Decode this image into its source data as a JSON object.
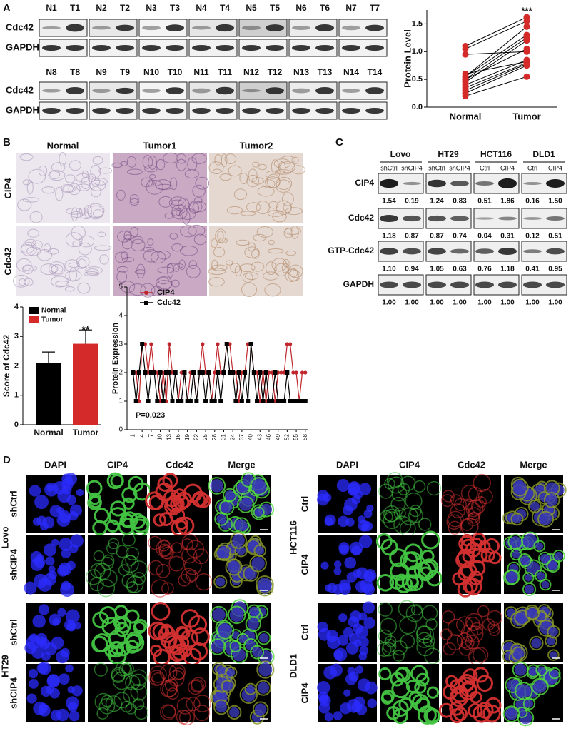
{
  "panels": {
    "a": {
      "label": "A",
      "blot_rows": [
        "Cdc42",
        "GAPDH"
      ],
      "lanes_top": [
        "N1",
        "T1",
        "N2",
        "T2",
        "N3",
        "T3",
        "N4",
        "T4",
        "N5",
        "T5",
        "N6",
        "T6",
        "N7",
        "T7"
      ],
      "lanes_bottom": [
        "N8",
        "T8",
        "N9",
        "T9",
        "N10",
        "T10",
        "N11",
        "T11",
        "N12",
        "T12",
        "N13",
        "T13",
        "N14",
        "T14"
      ]
    },
    "b": {
      "label": "B",
      "columns": [
        "Normal",
        "Tumor1",
        "Tumor2"
      ],
      "rows": [
        "CIP4",
        "Cdc42"
      ]
    },
    "c": {
      "label": "C",
      "groups": [
        {
          "name": "Lovo",
          "lanes": [
            "shCtrl",
            "shCIP4"
          ]
        },
        {
          "name": "HT29",
          "lanes": [
            "shCtrl",
            "shCIP4"
          ]
        },
        {
          "name": "HCT116",
          "lanes": [
            "Ctrl",
            "CIP4"
          ]
        },
        {
          "name": "DLD1",
          "lanes": [
            "Ctrl",
            "CIP4"
          ]
        }
      ],
      "rows": [
        {
          "name": "CIP4",
          "values": [
            "1.54",
            "0.19",
            "1.24",
            "0.83",
            "0.51",
            "1.86",
            "0.16",
            "1.50"
          ]
        },
        {
          "name": "Cdc42",
          "values": [
            "1.18",
            "0.87",
            "0.87",
            "0.74",
            "0.04",
            "0.31",
            "0.12",
            "0.51"
          ]
        },
        {
          "name": "GTP-Cdc42",
          "values": [
            "1.10",
            "0.94",
            "1.05",
            "0.63",
            "0.76",
            "1.18",
            "0.41",
            "0.95"
          ]
        },
        {
          "name": "GAPDH",
          "values": [
            "1.00",
            "1.00",
            "1.00",
            "1.00",
            "1.00",
            "1.00",
            "1.00",
            "1.00"
          ]
        }
      ]
    },
    "d": {
      "label": "D",
      "columns": [
        "DAPI",
        "CIP4",
        "Cdc42",
        "Merge"
      ],
      "left": [
        {
          "name": "Lovo",
          "conditions": [
            "shCtrl",
            "shCIP4"
          ]
        },
        {
          "name": "HT29",
          "conditions": [
            "shCtrl",
            "shCIP4"
          ]
        }
      ],
      "right": [
        {
          "name": "HCT116",
          "conditions": [
            "Ctrl",
            "CIP4"
          ]
        },
        {
          "name": "DLD1",
          "conditions": [
            "Ctrl",
            "CIP4"
          ]
        }
      ]
    }
  },
  "chart_data": [
    {
      "type": "paired",
      "ylabel": "Protein Level",
      "categories": [
        "Normal",
        "Tumor"
      ],
      "values": [
        [
          1.1,
          1.05,
          0.55,
          0.5,
          0.45,
          0.4,
          0.35,
          0.3,
          0.25,
          0.2,
          0.55,
          0.5,
          0.95,
          0.6
        ],
        [
          1.62,
          1.55,
          1.3,
          1.25,
          1.2,
          0.85,
          0.8,
          0.78,
          0.75,
          0.55,
          1.45,
          1.05,
          1.0,
          0.82
        ]
      ],
      "color": "#d42a2a",
      "annotation": "***",
      "ylim": [
        0,
        1.75
      ],
      "yticks": [
        {
          "value": 0,
          "label": "0.0"
        },
        {
          "value": 0.5,
          "label": "0.5"
        },
        {
          "value": 1,
          "label": "1.0"
        },
        {
          "value": 1.5,
          "label": "1.5"
        }
      ]
    },
    {
      "type": "bar",
      "ylabel": "Score of Cdc42",
      "categories": [
        "Normal",
        "Tumor"
      ],
      "values": [
        2.1,
        2.75
      ],
      "errors": [
        0.37,
        0.47
      ],
      "colors": [
        "#000000",
        "#d42a2a"
      ],
      "annotation": "**",
      "ylim": [
        0,
        4
      ],
      "yticks": [
        0,
        1,
        2,
        3,
        4
      ]
    },
    {
      "type": "line",
      "ylabel": "Protein Expression",
      "annotation": "P=0.023",
      "x": [
        1,
        2,
        3,
        4,
        5,
        6,
        7,
        8,
        9,
        10,
        11,
        12,
        13,
        14,
        15,
        16,
        17,
        18,
        19,
        20,
        21,
        22,
        23,
        24,
        25,
        26,
        27,
        28,
        29,
        30,
        31,
        32,
        33,
        34,
        35,
        36,
        37,
        38,
        39,
        40,
        41,
        42,
        43,
        44,
        45,
        46,
        47,
        48,
        49,
        50,
        51,
        52,
        53,
        54,
        55,
        56,
        57,
        58
      ],
      "series": [
        {
          "name": "CIP4",
          "color": "#c0272d",
          "values": [
            2,
            2,
            1,
            3,
            3,
            2,
            3,
            2,
            2,
            1,
            2,
            1,
            3,
            2,
            2,
            1,
            2,
            2,
            1,
            2,
            2,
            1,
            2,
            3,
            2,
            2,
            1,
            2,
            3,
            2,
            2,
            3,
            3,
            2,
            2,
            1,
            2,
            2,
            3,
            3,
            2,
            2,
            1,
            2,
            1,
            2,
            2,
            1,
            2,
            2,
            2,
            3,
            3,
            2,
            2,
            1,
            2,
            2
          ]
        },
        {
          "name": "Cdc42",
          "color": "#000000",
          "values": [
            2,
            1,
            2,
            3,
            2,
            1,
            2,
            2,
            1,
            2,
            1,
            2,
            2,
            1,
            2,
            1,
            1,
            2,
            1,
            1,
            2,
            1,
            2,
            2,
            1,
            2,
            1,
            1,
            2,
            1,
            2,
            3,
            2,
            2,
            1,
            2,
            1,
            2,
            1,
            3,
            2,
            1,
            2,
            1,
            2,
            1,
            1,
            2,
            1,
            1,
            1,
            2,
            1,
            1,
            1,
            1,
            1,
            1
          ]
        }
      ],
      "xlim": [
        -1,
        59
      ],
      "xticks": [
        1,
        4,
        7,
        10,
        13,
        16,
        19,
        22,
        25,
        28,
        31,
        34,
        37,
        40,
        43,
        46,
        49,
        52,
        55,
        58
      ],
      "ylim": [
        0,
        5
      ],
      "yticks": [
        0,
        1,
        2,
        3,
        4,
        5
      ]
    }
  ]
}
